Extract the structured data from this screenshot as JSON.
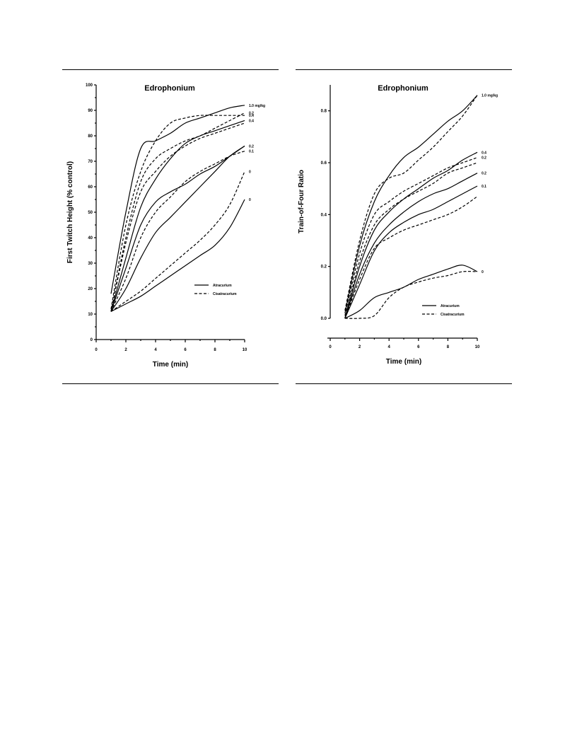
{
  "legend_entries": [
    "Atracurium",
    "Cisatracurium"
  ],
  "chart_data": [
    {
      "type": "line",
      "title": "Edrophonium",
      "xlabel": "Time (min)",
      "ylabel": "First Twitch Height (% control)",
      "xlim": [
        0,
        10
      ],
      "ylim": [
        0,
        100
      ],
      "xticks": [
        "0",
        "2",
        "4",
        "6",
        "8",
        "10"
      ],
      "yticks": [
        "0",
        "10",
        "20",
        "30",
        "40",
        "50",
        "60",
        "70",
        "80",
        "90",
        "100"
      ],
      "legend_position": "lower-right",
      "series": [
        {
          "style": "solid",
          "label": "1.0 mg/kg",
          "x": [
            1,
            2,
            3,
            4,
            5,
            6,
            7,
            8,
            9,
            10
          ],
          "y": [
            18,
            50,
            75,
            78,
            81,
            85,
            87,
            89,
            91,
            92
          ]
        },
        {
          "style": "dashed",
          "label": "0.4",
          "x": [
            1,
            2,
            3,
            4,
            5,
            6,
            7,
            8,
            9,
            10
          ],
          "y": [
            12,
            45,
            66,
            78,
            85,
            87,
            88,
            88,
            88,
            88
          ]
        },
        {
          "style": "dashed",
          "label": "0.2",
          "x": [
            1,
            2,
            3,
            4,
            5,
            6,
            7,
            8,
            9,
            10
          ],
          "y": [
            11,
            40,
            62,
            71,
            75,
            78,
            80,
            83,
            86,
            89
          ]
        },
        {
          "style": "solid",
          "label": "0.4",
          "x": [
            1,
            2,
            3,
            4,
            5,
            6,
            7,
            8,
            9,
            10
          ],
          "y": [
            11,
            32,
            52,
            63,
            71,
            77,
            80,
            82,
            84,
            86
          ]
        },
        {
          "style": "dashed",
          "label": "",
          "x": [
            1,
            2,
            3,
            4,
            5,
            6,
            7,
            8,
            9,
            10
          ],
          "y": [
            11,
            38,
            58,
            66,
            72,
            76,
            79,
            81,
            83,
            85
          ]
        },
        {
          "style": "solid",
          "label": "0.2",
          "x": [
            1,
            2,
            3,
            4,
            5,
            6,
            7,
            8,
            9,
            10
          ],
          "y": [
            11,
            28,
            45,
            54,
            58,
            61,
            65,
            68,
            72,
            76
          ]
        },
        {
          "style": "dashed",
          "label": "0.1",
          "x": [
            1,
            2,
            3,
            4,
            5,
            6,
            7,
            8,
            9,
            10
          ],
          "y": [
            11,
            24,
            40,
            50,
            56,
            62,
            66,
            69,
            72,
            74
          ]
        },
        {
          "style": "solid",
          "label": "",
          "x": [
            1,
            2,
            3,
            4,
            5,
            6,
            7,
            8,
            9,
            10
          ],
          "y": [
            11,
            20,
            32,
            42,
            48,
            54,
            60,
            66,
            72,
            76
          ]
        },
        {
          "style": "dashed",
          "label": "0",
          "x": [
            1,
            2,
            3,
            4,
            5,
            6,
            7,
            8,
            9,
            10
          ],
          "y": [
            11,
            15,
            19,
            24,
            29,
            34,
            39,
            45,
            53,
            66
          ]
        },
        {
          "style": "solid",
          "label": "0",
          "x": [
            1,
            2,
            3,
            4,
            5,
            6,
            7,
            8,
            9,
            10
          ],
          "y": [
            11,
            14,
            17,
            21,
            25,
            29,
            33,
            37,
            44,
            55
          ]
        }
      ]
    },
    {
      "type": "line",
      "title": "Edrophonium",
      "xlabel": "Time (min)",
      "ylabel": "Train-of-Four Ratio",
      "xlim": [
        0,
        10
      ],
      "ylim": [
        0,
        0.9
      ],
      "xticks": [
        "0",
        "2",
        "4",
        "6",
        "8",
        "10"
      ],
      "yticks": [
        "0.0",
        "0.2",
        "0.4",
        "0.6",
        "0.8"
      ],
      "legend_position": "lower-right",
      "series": [
        {
          "style": "solid",
          "label": "1.0 mg/kg",
          "x": [
            1,
            2,
            3,
            4,
            5,
            6,
            7,
            8,
            9,
            10
          ],
          "y": [
            0.02,
            0.28,
            0.45,
            0.55,
            0.62,
            0.66,
            0.71,
            0.76,
            0.8,
            0.86
          ]
        },
        {
          "style": "dashed",
          "label": "",
          "x": [
            1,
            2,
            3,
            4,
            5,
            6,
            7,
            8,
            9,
            10
          ],
          "y": [
            0.03,
            0.3,
            0.48,
            0.54,
            0.56,
            0.61,
            0.66,
            0.72,
            0.78,
            0.86
          ]
        },
        {
          "style": "solid",
          "label": "0.4",
          "x": [
            1,
            2,
            3,
            4,
            5,
            6,
            7,
            8,
            9,
            10
          ],
          "y": [
            0.0,
            0.2,
            0.34,
            0.41,
            0.46,
            0.5,
            0.54,
            0.57,
            0.61,
            0.64
          ]
        },
        {
          "style": "dashed",
          "label": "0.2",
          "x": [
            1,
            2,
            3,
            4,
            5,
            6,
            7,
            8,
            9,
            10
          ],
          "y": [
            0.01,
            0.25,
            0.4,
            0.45,
            0.49,
            0.52,
            0.55,
            0.58,
            0.6,
            0.62
          ]
        },
        {
          "style": "solid",
          "label": "0.2",
          "x": [
            1,
            2,
            3,
            4,
            5,
            6,
            7,
            8,
            9,
            10
          ],
          "y": [
            0.0,
            0.17,
            0.29,
            0.36,
            0.41,
            0.45,
            0.48,
            0.5,
            0.53,
            0.56
          ]
        },
        {
          "style": "dashed",
          "label": "",
          "x": [
            1,
            2,
            3,
            4,
            5,
            6,
            7,
            8,
            9,
            10
          ],
          "y": [
            0.0,
            0.22,
            0.36,
            0.42,
            0.46,
            0.49,
            0.52,
            0.56,
            0.58,
            0.6
          ]
        },
        {
          "style": "solid",
          "label": "0.1",
          "x": [
            1,
            2,
            3,
            4,
            5,
            6,
            7,
            8,
            9,
            10
          ],
          "y": [
            0.0,
            0.13,
            0.26,
            0.33,
            0.37,
            0.4,
            0.42,
            0.45,
            0.48,
            0.51
          ]
        },
        {
          "style": "dashed",
          "label": "",
          "x": [
            1,
            2,
            3,
            4,
            5,
            6,
            7,
            8,
            9,
            10
          ],
          "y": [
            0.0,
            0.15,
            0.27,
            0.31,
            0.34,
            0.36,
            0.38,
            0.4,
            0.43,
            0.47
          ]
        },
        {
          "style": "solid",
          "label": "0",
          "x": [
            1,
            2,
            3,
            4,
            5,
            6,
            7,
            8,
            9,
            10
          ],
          "y": [
            0.0,
            0.03,
            0.08,
            0.1,
            0.12,
            0.15,
            0.17,
            0.19,
            0.205,
            0.18
          ]
        },
        {
          "style": "dashed",
          "label": "",
          "x": [
            1,
            2,
            3,
            4,
            5,
            6,
            7,
            8,
            9,
            10
          ],
          "y": [
            0.0,
            0.0,
            0.01,
            0.08,
            0.12,
            0.14,
            0.155,
            0.165,
            0.18,
            0.18
          ]
        }
      ]
    }
  ]
}
